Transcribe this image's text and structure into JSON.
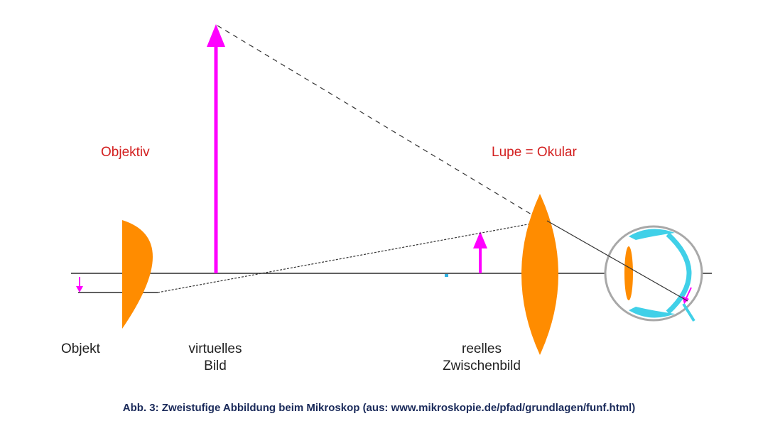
{
  "labels": {
    "objektiv": "Objektiv",
    "lupe_okular": "Lupe = Okular",
    "objekt": "Objekt",
    "virtuelles_line1": "virtuelles",
    "virtuelles_line2": "Bild",
    "reelles_line1": "reelles",
    "reelles_line2": "Zwischenbild"
  },
  "caption": "Abb. 3: Zweistufige Abbildung beim Mikroskop (aus: www.mikroskopie.de/pfad/grundlagen/funf.html)",
  "colors": {
    "lens": "#ff8c00",
    "arrow": "#ff00ff",
    "axis": "#000000",
    "label_red": "#d32020",
    "eye_outline": "#a0a0a0",
    "eye_retina": "#40d0e8",
    "caption": "#1a2a5a"
  }
}
